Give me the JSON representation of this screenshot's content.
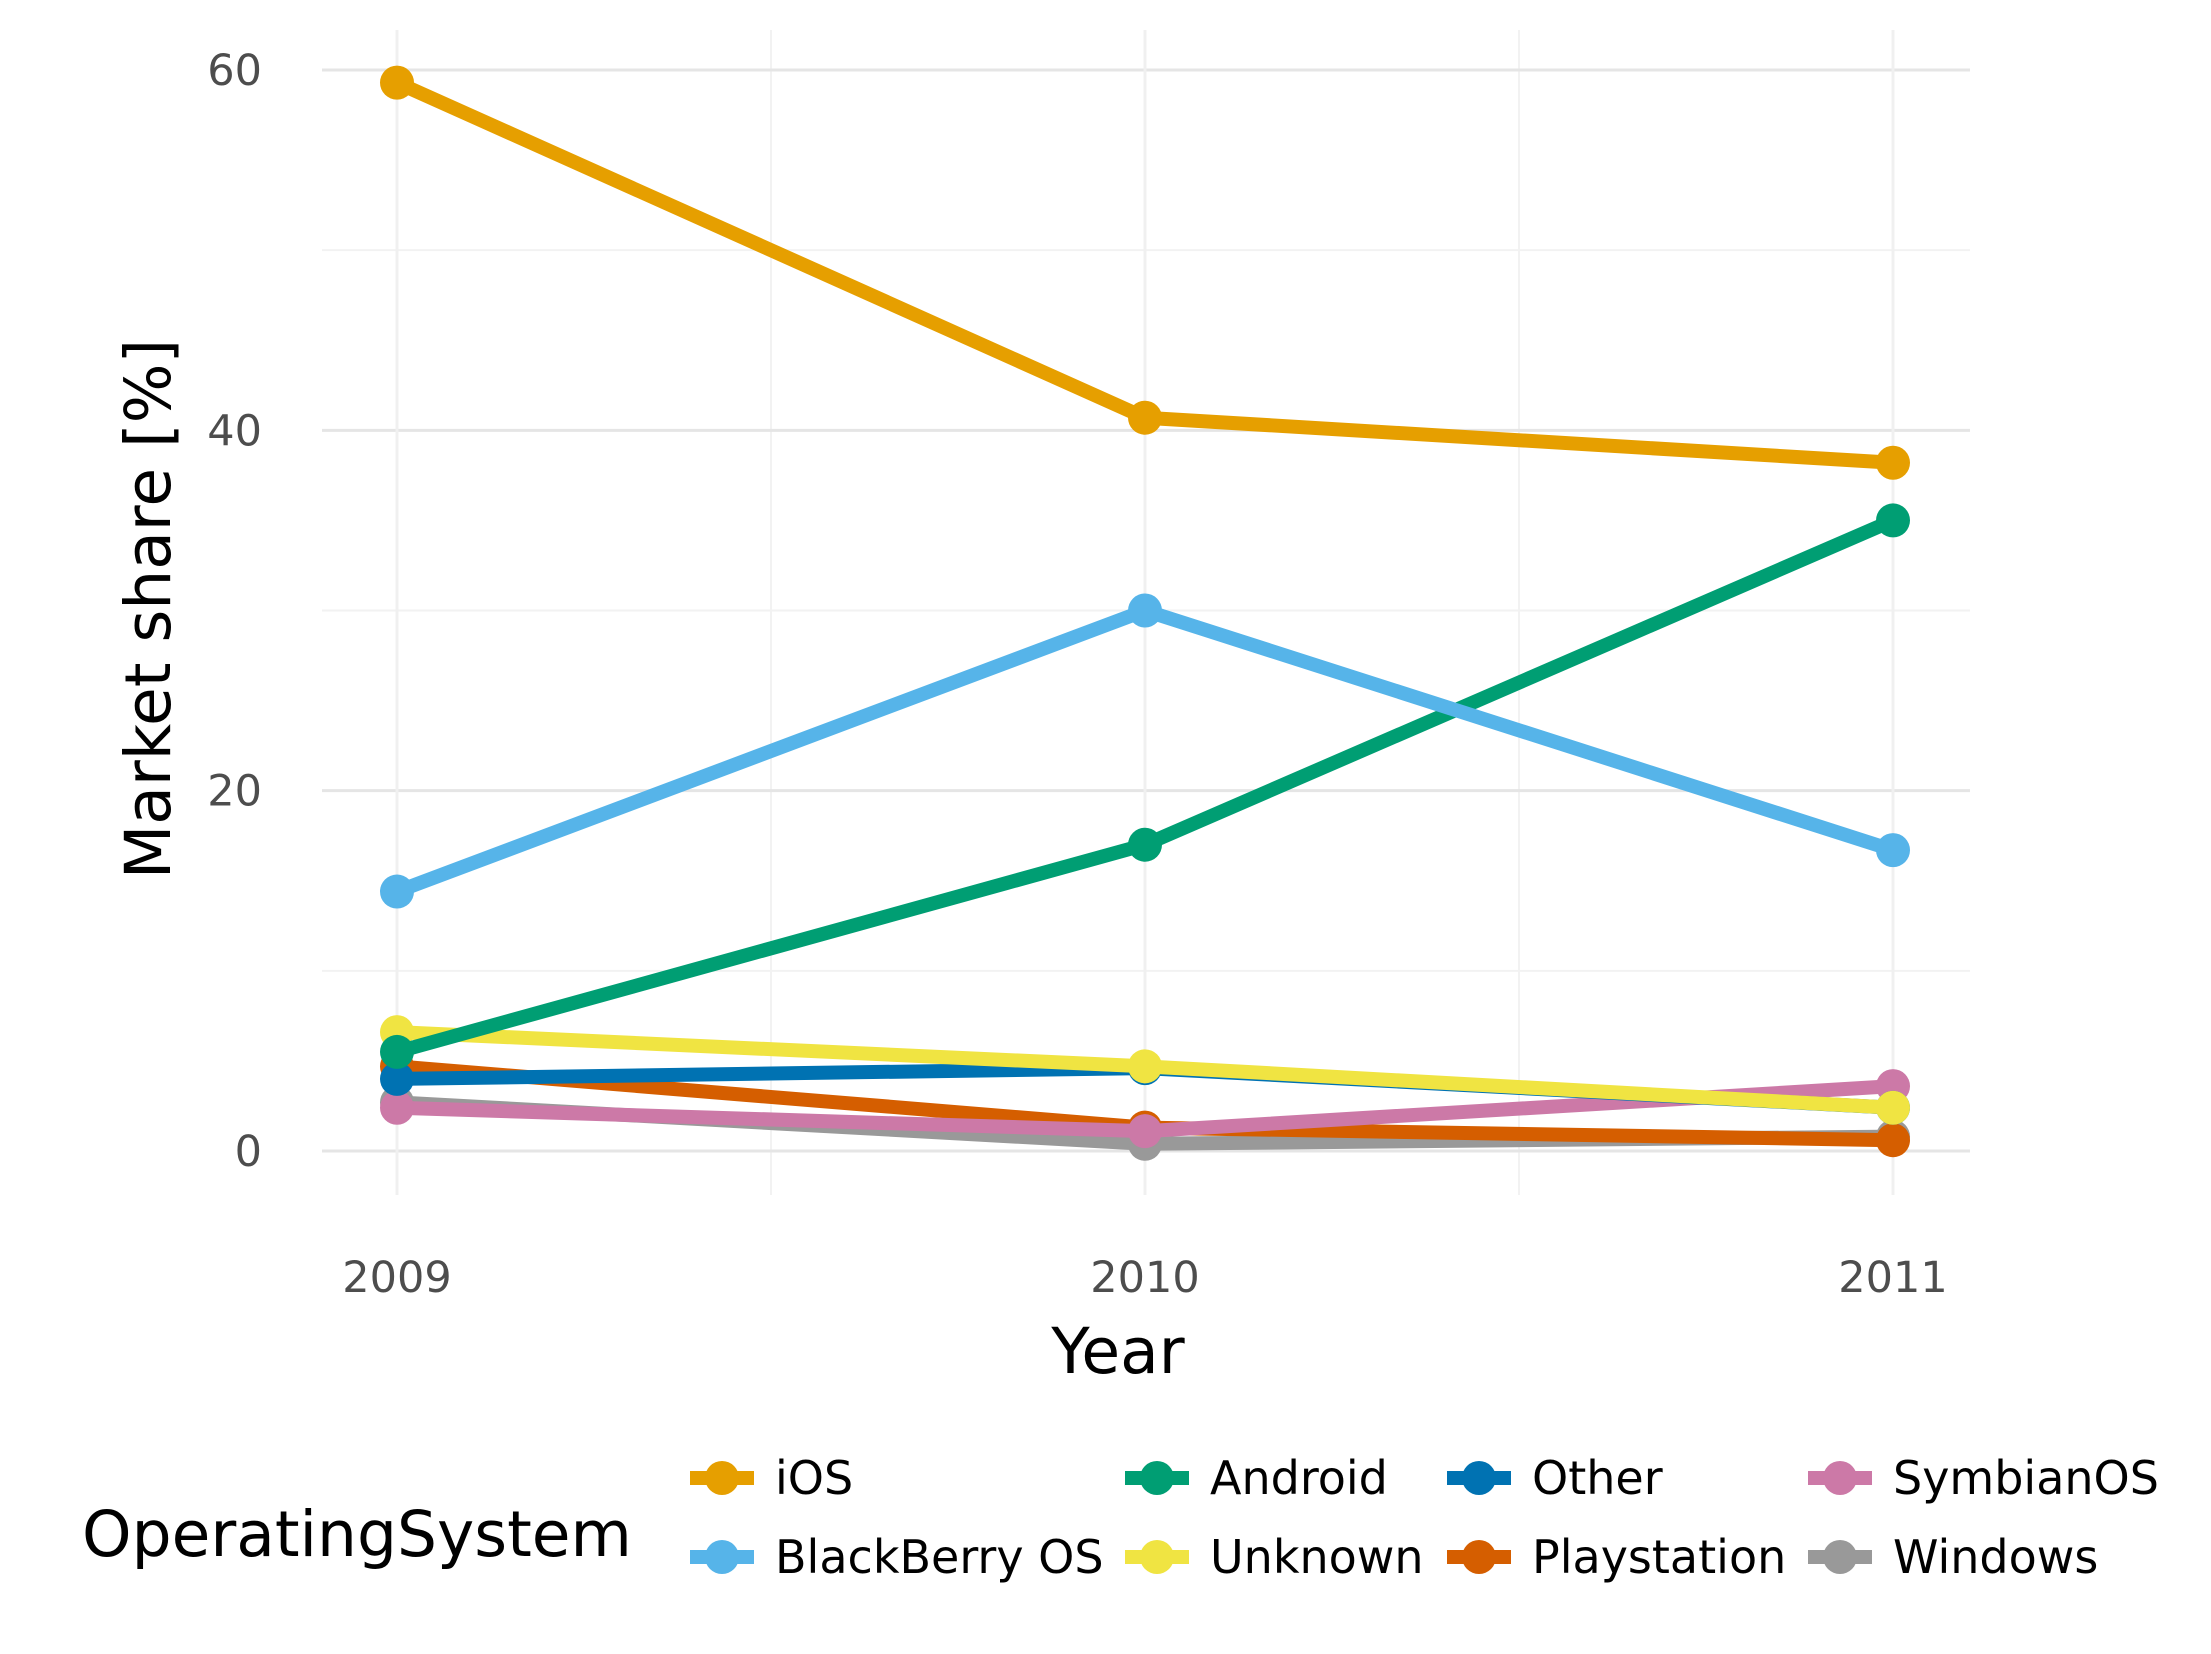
{
  "chart_data": {
    "type": "line",
    "x": [
      "2009",
      "2010",
      "2011"
    ],
    "xlabel": "Year",
    "ylabel": "Market share [%]",
    "ylim": [
      -5,
      62
    ],
    "yticks": [
      0,
      20,
      40,
      60
    ],
    "grid": true,
    "legend": {
      "title": "OperatingSystem",
      "placement": "bottom",
      "columns": 4
    },
    "series": [
      {
        "name": "iOS",
        "color": "#E69F00",
        "values": [
          59.3,
          40.7,
          38.2
        ]
      },
      {
        "name": "BlackBerry OS",
        "color": "#56B4E9",
        "values": [
          14.4,
          30.0,
          16.7
        ]
      },
      {
        "name": "Android",
        "color": "#009E73",
        "values": [
          5.5,
          17.0,
          35.0
        ]
      },
      {
        "name": "Unknown",
        "color": "#F0E442",
        "values": [
          6.6,
          4.7,
          2.4
        ]
      },
      {
        "name": "Other",
        "color": "#0072B2",
        "values": [
          4.0,
          4.6,
          2.4
        ]
      },
      {
        "name": "Playstation",
        "color": "#D55E00",
        "values": [
          4.7,
          1.3,
          0.6
        ]
      },
      {
        "name": "SymbianOS",
        "color": "#CC79A7",
        "values": [
          2.4,
          1.1,
          3.6
        ]
      },
      {
        "name": "Windows",
        "color": "#999999",
        "values": [
          2.7,
          0.4,
          0.8
        ]
      }
    ],
    "draw_order": [
      "Windows",
      "Playstation",
      "SymbianOS",
      "Other",
      "Unknown",
      "Android",
      "BlackBerry OS",
      "iOS"
    ],
    "legend_order": [
      "iOS",
      "BlackBerry OS",
      "Android",
      "Unknown",
      "Other",
      "Playstation",
      "SymbianOS",
      "Windows"
    ]
  }
}
